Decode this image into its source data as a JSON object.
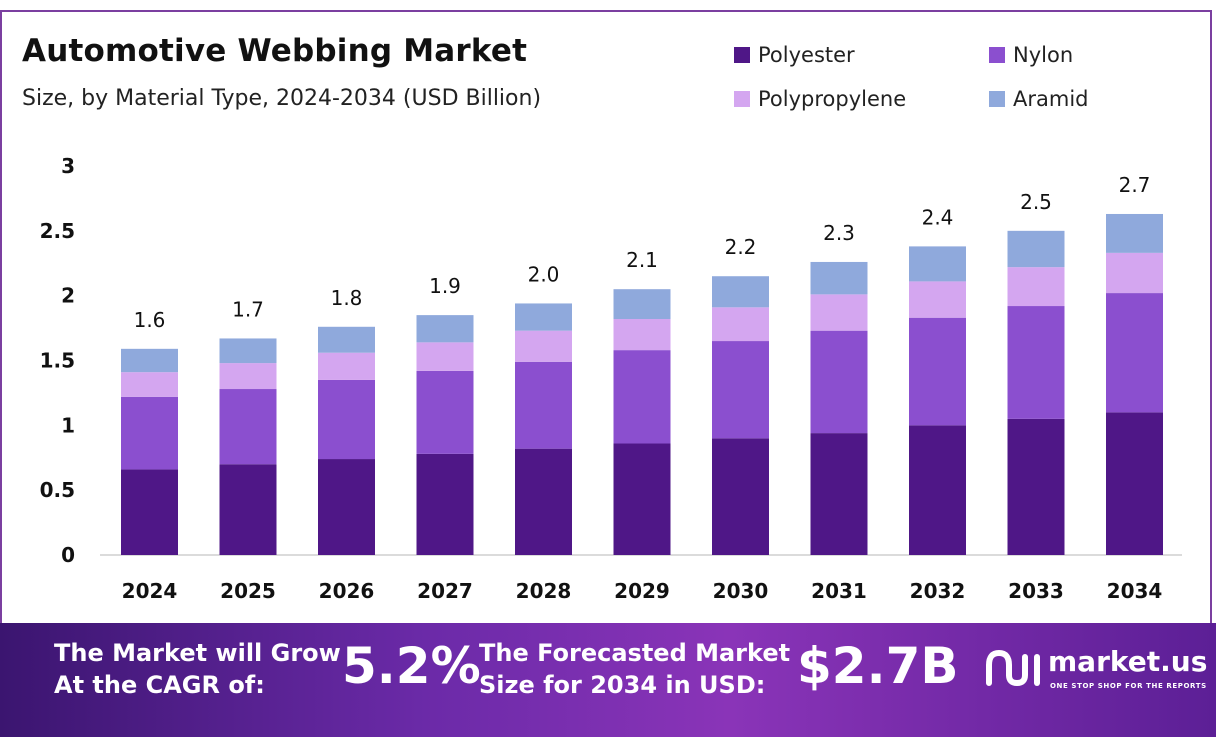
{
  "header": {
    "title": "Automotive Webbing Market",
    "subtitle": "Size, by Material Type, 2024-2034 (USD Billion)"
  },
  "legend": [
    {
      "name": "Polyester",
      "color": "#4f1787"
    },
    {
      "name": "Nylon",
      "color": "#8b4fcf"
    },
    {
      "name": "Polypropylene",
      "color": "#d4a6f0"
    },
    {
      "name": "Aramid",
      "color": "#8fa9dc"
    }
  ],
  "chart_data": {
    "type": "bar",
    "stacked": true,
    "categories": [
      "2024",
      "2025",
      "2026",
      "2027",
      "2028",
      "2029",
      "2030",
      "2031",
      "2032",
      "2033",
      "2034"
    ],
    "series": [
      {
        "name": "Polyester",
        "color": "#4f1787",
        "values": [
          0.66,
          0.7,
          0.74,
          0.78,
          0.82,
          0.86,
          0.9,
          0.94,
          1.0,
          1.05,
          1.1
        ]
      },
      {
        "name": "Nylon",
        "color": "#8b4fcf",
        "values": [
          0.56,
          0.58,
          0.61,
          0.64,
          0.67,
          0.72,
          0.75,
          0.79,
          0.83,
          0.87,
          0.92
        ]
      },
      {
        "name": "Polypropylene",
        "color": "#d4a6f0",
        "values": [
          0.19,
          0.2,
          0.21,
          0.22,
          0.24,
          0.24,
          0.26,
          0.28,
          0.28,
          0.3,
          0.31
        ]
      },
      {
        "name": "Aramid",
        "color": "#8fa9dc",
        "values": [
          0.18,
          0.19,
          0.2,
          0.21,
          0.21,
          0.23,
          0.24,
          0.25,
          0.27,
          0.28,
          0.3
        ]
      }
    ],
    "totals_labels": [
      "1.6",
      "1.7",
      "1.8",
      "1.9",
      "2.0",
      "2.1",
      "2.2",
      "2.3",
      "2.4",
      "2.5",
      "2.7"
    ],
    "y_ticks": [
      "0",
      "0.5",
      "1",
      "1.5",
      "2",
      "2.5",
      "3"
    ],
    "ylim": [
      0,
      3
    ],
    "grid": false,
    "legend_position": "top-right"
  },
  "banner": {
    "cagr_label_line1": "The Market will Grow",
    "cagr_label_line2": "At the CAGR of:",
    "cagr_value": "5.2%",
    "forecast_label_line1": "The Forecasted Market",
    "forecast_label_line2": "Size for 2034 in USD:",
    "forecast_value": "$2.7B",
    "logo_name": "market.us",
    "logo_tagline": "ONE STOP SHOP FOR THE REPORTS",
    "logo_icon": "market-us-logo-icon"
  }
}
